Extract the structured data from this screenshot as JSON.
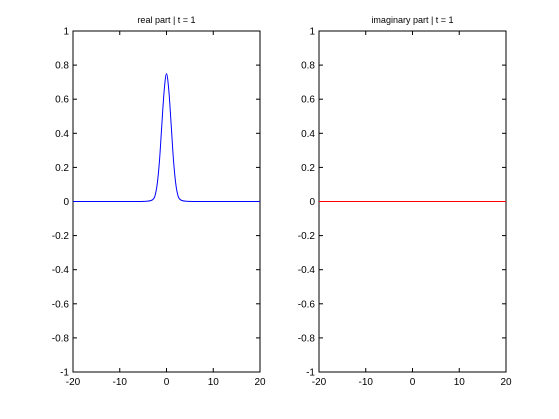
{
  "chart_data": [
    {
      "type": "line",
      "title": "real part | t = 1",
      "xlabel": "",
      "ylabel": "",
      "xlim": [
        -20,
        20
      ],
      "ylim": [
        -1,
        1
      ],
      "xticks": [
        -20,
        -10,
        0,
        10,
        20
      ],
      "yticks": [
        1,
        0.8,
        0.6,
        0.4,
        0.2,
        0,
        -0.2,
        -0.4,
        -0.6,
        -0.8,
        -1
      ],
      "grid": false,
      "series": [
        {
          "color": "#0000ff",
          "x": [
            -20,
            -15,
            -10,
            -6,
            -4,
            -3,
            -2.5,
            -2,
            -1.5,
            -1,
            -0.5,
            0,
            0.5,
            1,
            1.5,
            2,
            2.5,
            3,
            4,
            6,
            10,
            15,
            20
          ],
          "y": [
            0,
            0,
            0,
            0,
            0.002,
            0.01,
            0.03,
            0.1,
            0.24,
            0.45,
            0.65,
            0.75,
            0.65,
            0.45,
            0.24,
            0.1,
            0.03,
            0.01,
            0.002,
            0,
            0,
            0,
            0
          ]
        }
      ]
    },
    {
      "type": "line",
      "title": "imaginary part | t = 1",
      "xlabel": "",
      "ylabel": "",
      "xlim": [
        -20,
        20
      ],
      "ylim": [
        -1,
        1
      ],
      "xticks": [
        -20,
        -10,
        0,
        10,
        20
      ],
      "yticks": [
        1,
        0.8,
        0.6,
        0.4,
        0.2,
        0,
        -0.2,
        -0.4,
        -0.6,
        -0.8,
        -1
      ],
      "grid": false,
      "series": [
        {
          "color": "#ff0000",
          "x": [
            -20,
            20
          ],
          "y": [
            0,
            0
          ]
        }
      ]
    }
  ]
}
